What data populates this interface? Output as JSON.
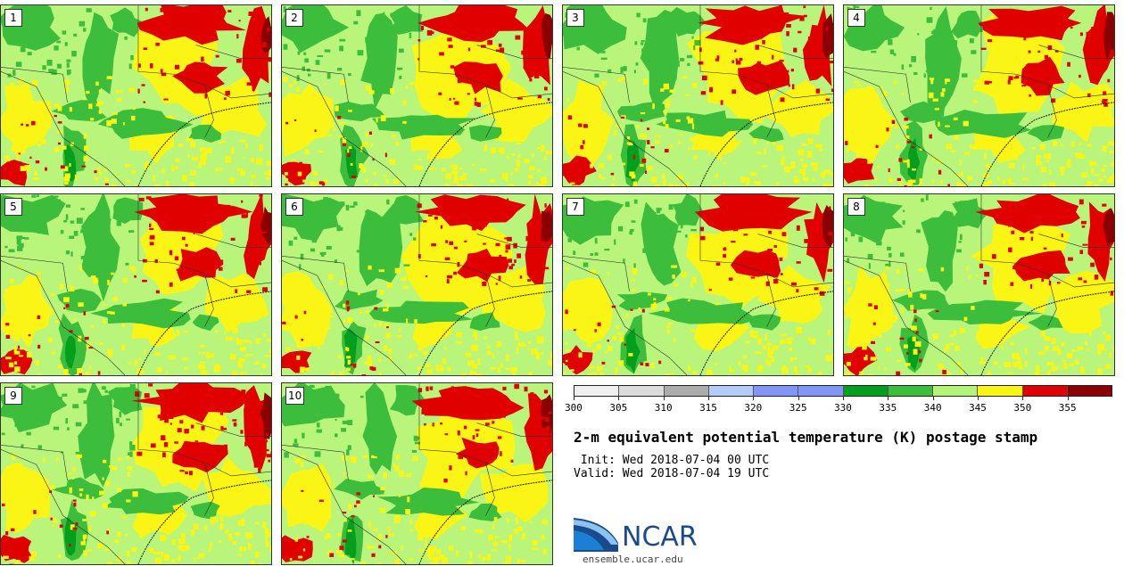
{
  "members": [
    "1",
    "2",
    "3",
    "4",
    "5",
    "6",
    "7",
    "8",
    "9",
    "10"
  ],
  "legend": {
    "colors": [
      "#f0f0f0",
      "#dcdcdc",
      "#acacac",
      "#b4ccfc",
      "#8296fa",
      "#8296fa",
      "#00a01e",
      "#3cbe3c",
      "#b4f578",
      "#faf514",
      "#e10000",
      "#8b0000"
    ],
    "ticks": [
      "300",
      "305",
      "310",
      "315",
      "320",
      "325",
      "330",
      "335",
      "340",
      "345",
      "350",
      "355"
    ]
  },
  "title": "2-m equivalent potential temperature (K) postage stamp",
  "init": " Init: Wed 2018-07-04 00 UTC",
  "valid": "Valid: Wed 2018-07-04 19 UTC",
  "logo": {
    "name": "NCAR",
    "site": "ensemble.ucar.edu"
  }
}
